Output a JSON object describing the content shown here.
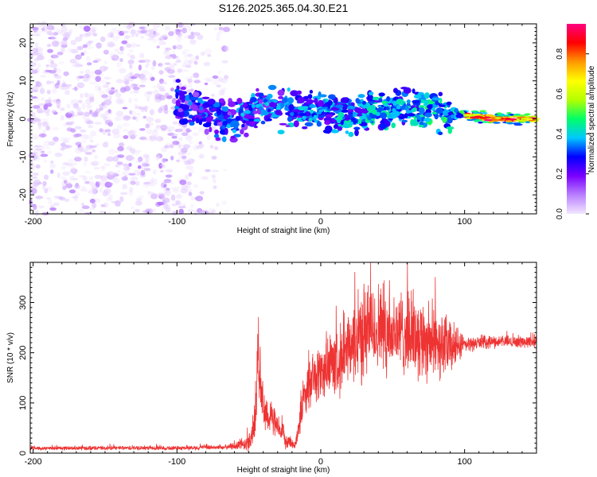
{
  "title": "S126.2025.365.04.30.E21",
  "chart_data": [
    {
      "type": "heatmap",
      "name": "spectrogram",
      "xlabel": "Height of straight line (km)",
      "ylabel": "Frequency (Hz)",
      "xlim": [
        -202,
        150
      ],
      "ylim": [
        -25,
        25
      ],
      "xticks": [
        -200,
        -100,
        0,
        100
      ],
      "yticks": [
        -20,
        -10,
        0,
        10,
        20
      ],
      "colorbar": {
        "label": "Normalized spectral amplitude",
        "range": [
          0,
          0.95
        ],
        "ticks": [
          0.0,
          0.2,
          0.4,
          0.6,
          0.8
        ],
        "tick_labels": [
          "0.0",
          "0.2",
          "0.4",
          "0.6",
          "0.8"
        ],
        "colors": [
          "#f2e6ff",
          "#b980ff",
          "#7a00ff",
          "#0000ff",
          "#00c8ff",
          "#00ff66",
          "#b4ff00",
          "#ffff00",
          "#ff9900",
          "#ff0000",
          "#ff0080"
        ]
      },
      "regions": [
        {
          "name": "noise",
          "x": [
            -202,
            -65
          ],
          "y": [
            -25,
            25
          ],
          "amplitude": [
            0.0,
            0.12
          ]
        },
        {
          "name": "signal-band",
          "x": [
            -100,
            150
          ],
          "center_freq": [
            [
              -100,
              5
            ],
            [
              -80,
              2
            ],
            [
              -60,
              -1
            ],
            [
              -40,
              3
            ],
            [
              -20,
              2
            ],
            [
              0,
              2
            ],
            [
              20,
              1
            ],
            [
              40,
              3
            ],
            [
              60,
              3
            ],
            [
              80,
              2
            ],
            [
              100,
              1
            ],
            [
              120,
              0
            ],
            [
              150,
              0
            ]
          ],
          "amplitude": [
            0.1,
            0.95
          ]
        }
      ]
    },
    {
      "type": "line",
      "name": "snr",
      "xlabel": "Height of straight line (km)",
      "ylabel": "SNR (10 * v/v)",
      "xlim": [
        -202,
        150
      ],
      "ylim": [
        0,
        380
      ],
      "xticks": [
        -200,
        -100,
        0,
        100
      ],
      "yticks": [
        0,
        100,
        200,
        300
      ],
      "color": "#ee3333",
      "series": [
        {
          "name": "SNR",
          "x": [
            -202,
            -100,
            -65,
            -50,
            -46,
            -44,
            -40,
            -35,
            -25,
            -18,
            -15,
            -12,
            -5,
            0,
            10,
            20,
            25,
            30,
            40,
            50,
            60,
            70,
            80,
            90,
            100,
            110,
            120,
            130,
            140,
            150
          ],
          "y": [
            10,
            10,
            12,
            20,
            60,
            180,
            90,
            70,
            30,
            15,
            60,
            110,
            150,
            160,
            180,
            200,
            230,
            240,
            250,
            240,
            240,
            230,
            220,
            210,
            215,
            220,
            222,
            222,
            222,
            222
          ],
          "spread": [
            5,
            5,
            6,
            20,
            60,
            90,
            60,
            40,
            25,
            10,
            40,
            60,
            60,
            70,
            80,
            90,
            110,
            120,
            110,
            110,
            100,
            100,
            90,
            70,
            20,
            15,
            15,
            15,
            15,
            15
          ]
        }
      ]
    }
  ]
}
